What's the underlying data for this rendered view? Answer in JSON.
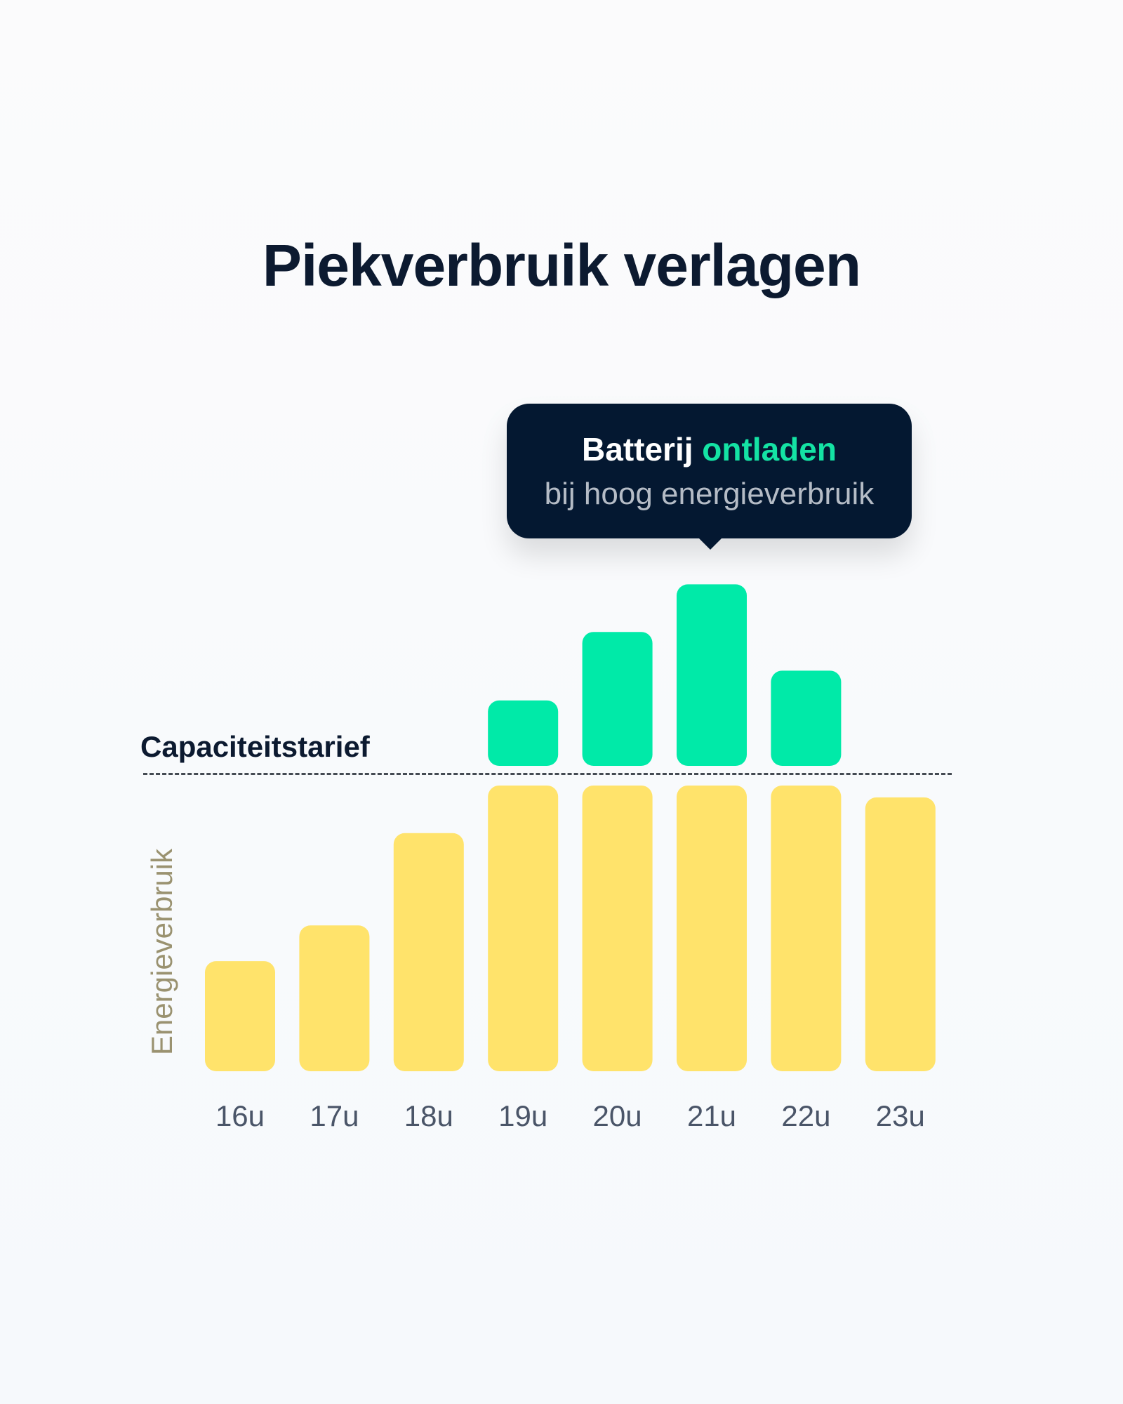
{
  "title": "Piekverbruik verlagen",
  "tooltip": {
    "text_bold": "Batterij",
    "text_highlight": "ontladen",
    "subtext": "bij hoog energieverbruik"
  },
  "colors": {
    "consumption": "#ffe36b",
    "battery": "#00eaa8",
    "tooltip_bg": "#041831",
    "highlight": "#14e3a4"
  },
  "chart_data": {
    "type": "bar",
    "title": "Piekverbruik verlagen",
    "ylabel": "Energieverbruik",
    "xlabel": "",
    "threshold_label": "Capaciteitstarief",
    "threshold": 100,
    "categories": [
      "16u",
      "17u",
      "18u",
      "19u",
      "20u",
      "21u",
      "22u",
      "23u"
    ],
    "series": [
      {
        "values": [
          37,
          49,
          80,
          96,
          96,
          96,
          96,
          92
        ]
      },
      {
        "values": [
          null,
          null,
          null,
          22,
          45,
          61,
          32,
          null
        ]
      }
    ],
    "grid": false
  }
}
